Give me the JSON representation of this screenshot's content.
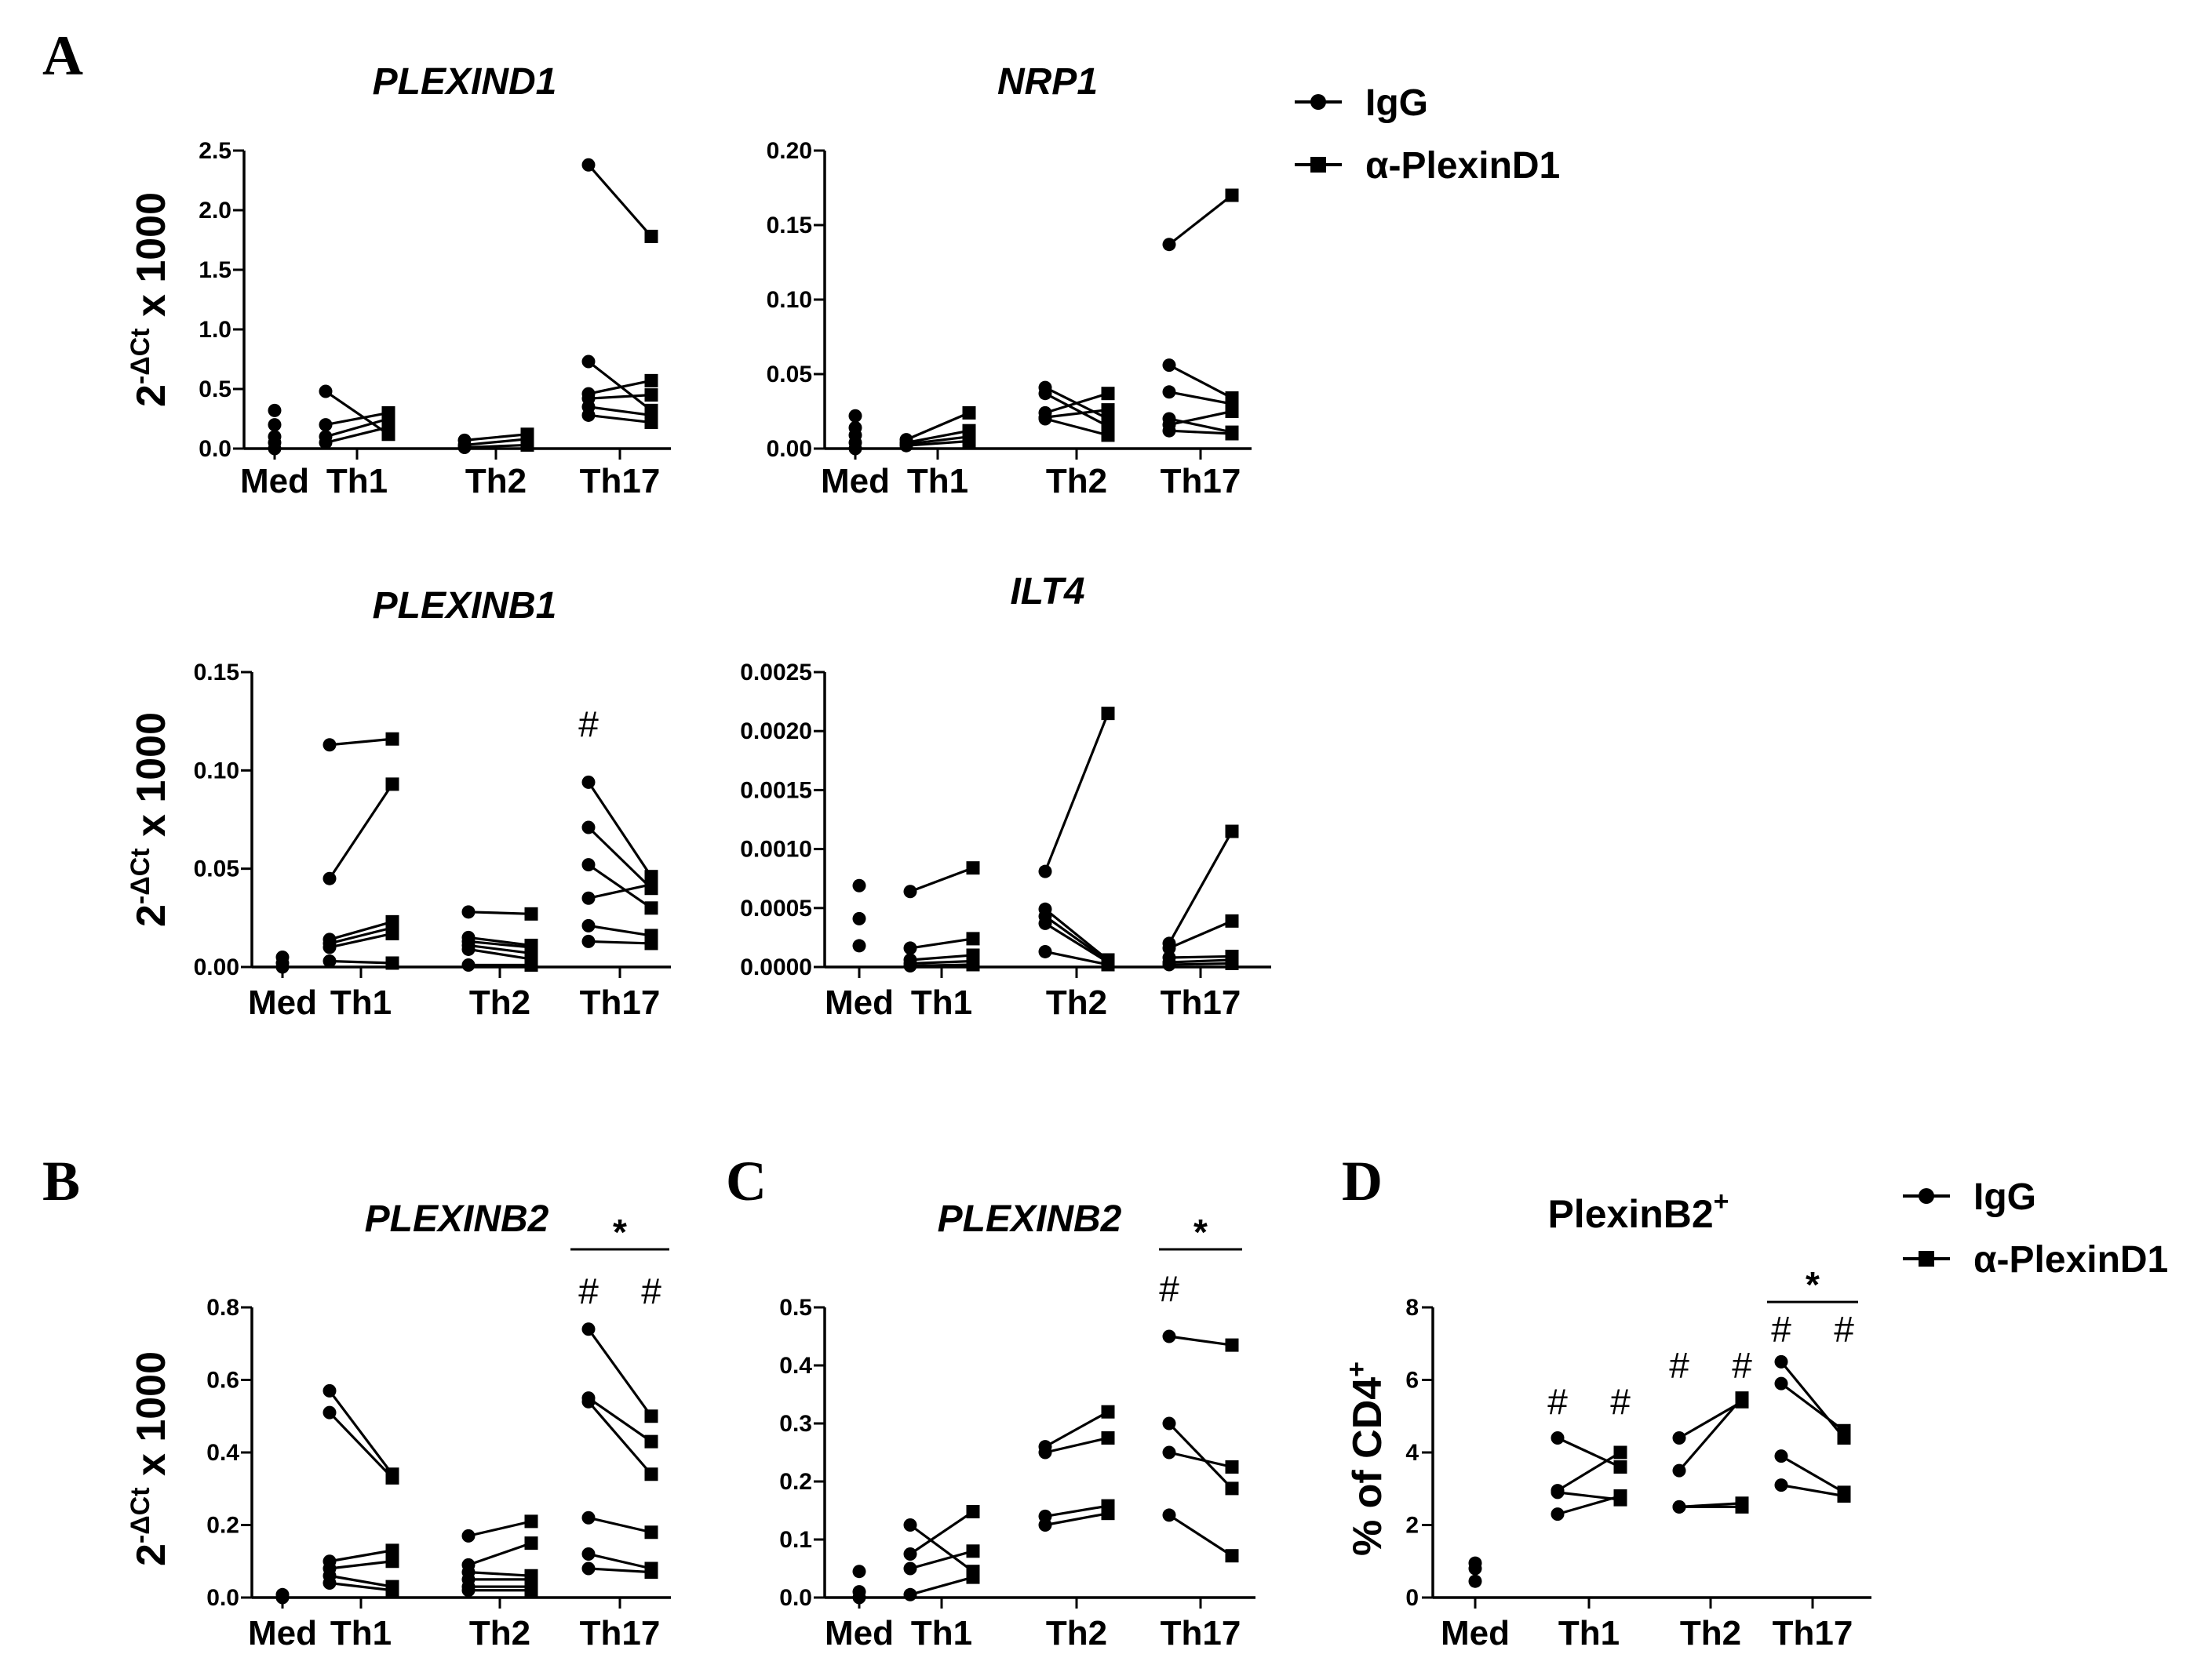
{
  "legend_top": {
    "items": [
      "IgG",
      "α-PlexinD1"
    ]
  },
  "legend_bottom": {
    "items": [
      "IgG",
      "α-PlexinD1"
    ]
  },
  "series_markers": {
    "IgG": "circle",
    "α-PlexinD1": "square"
  },
  "chart_data": [
    {
      "id": "plexind1",
      "type": "scatter",
      "panel_letter": "A",
      "title": "PLEXIND1",
      "ylabel": "2-ΔCt x 1000",
      "ylim": [
        0,
        2.5
      ],
      "yticks": [
        "0.0",
        "0.5",
        "1.0",
        "1.5",
        "2.0",
        "2.5"
      ],
      "categories": [
        "Med",
        "Th1",
        "Th2",
        "Th17"
      ],
      "med_points": [
        0.0,
        0.05,
        0.1,
        0.2,
        0.32
      ],
      "pairs": {
        "Th1": [
          [
            0.48,
            0.12
          ],
          [
            0.2,
            0.3
          ],
          [
            0.1,
            0.25
          ],
          [
            0.05,
            0.18
          ]
        ],
        "Th2": [
          [
            0.07,
            0.12
          ],
          [
            0.03,
            0.08
          ],
          [
            0.01,
            0.03
          ]
        ],
        "Th17": [
          [
            2.38,
            1.78
          ],
          [
            0.73,
            0.32
          ],
          [
            0.46,
            0.57
          ],
          [
            0.42,
            0.45
          ],
          [
            0.35,
            0.28
          ],
          [
            0.28,
            0.22
          ]
        ]
      },
      "annotations": []
    },
    {
      "id": "nrp1",
      "type": "scatter",
      "title": "NRP1",
      "ylabel": "",
      "ylim": [
        0,
        0.2
      ],
      "yticks": [
        "0.00",
        "0.05",
        "0.10",
        "0.15",
        "0.20"
      ],
      "categories": [
        "Med",
        "Th1",
        "Th2",
        "Th17"
      ],
      "med_points": [
        0.0,
        0.004,
        0.009,
        0.014,
        0.022
      ],
      "pairs": {
        "Th1": [
          [
            0.006,
            0.024
          ],
          [
            0.004,
            0.012
          ],
          [
            0.003,
            0.008
          ],
          [
            0.002,
            0.005
          ]
        ],
        "Th2": [
          [
            0.041,
            0.02
          ],
          [
            0.037,
            0.015
          ],
          [
            0.024,
            0.037
          ],
          [
            0.021,
            0.026
          ],
          [
            0.02,
            0.009
          ]
        ],
        "Th17": [
          [
            0.137,
            0.17
          ],
          [
            0.056,
            0.034
          ],
          [
            0.038,
            0.03
          ],
          [
            0.02,
            0.011
          ],
          [
            0.016,
            0.025
          ],
          [
            0.012,
            0.01
          ]
        ]
      },
      "annotations": []
    },
    {
      "id": "plexinb1",
      "type": "scatter",
      "title": "PLEXINB1",
      "ylabel": "2-ΔCt x 1000",
      "ylim": [
        0,
        0.15
      ],
      "yticks": [
        "0.00",
        "0.05",
        "0.10",
        "0.15"
      ],
      "categories": [
        "Med",
        "Th1",
        "Th2",
        "Th17"
      ],
      "med_points": [
        0.0,
        0.002,
        0.005
      ],
      "pairs": {
        "Th1": [
          [
            0.113,
            0.116
          ],
          [
            0.045,
            0.093
          ],
          [
            0.014,
            0.023
          ],
          [
            0.012,
            0.02
          ],
          [
            0.01,
            0.017
          ],
          [
            0.003,
            0.002
          ]
        ],
        "Th2": [
          [
            0.028,
            0.027
          ],
          [
            0.015,
            0.011
          ],
          [
            0.013,
            0.01
          ],
          [
            0.011,
            0.007
          ],
          [
            0.009,
            0.004
          ],
          [
            0.001,
            0.001
          ]
        ],
        "Th17": [
          [
            0.094,
            0.046
          ],
          [
            0.071,
            0.04
          ],
          [
            0.052,
            0.03
          ],
          [
            0.035,
            0.042
          ],
          [
            0.021,
            0.016
          ],
          [
            0.013,
            0.012
          ]
        ]
      },
      "annotations": [
        {
          "text": "#",
          "category": "Th17",
          "side": "igg",
          "value": 0.117
        }
      ]
    },
    {
      "id": "ilt4",
      "type": "scatter",
      "title": "ILT4",
      "ylabel": "",
      "ylim": [
        0,
        0.0025
      ],
      "yticks": [
        "0.0000",
        "0.0005",
        "0.0010",
        "0.0015",
        "0.0020",
        "0.0025"
      ],
      "categories": [
        "Med",
        "Th1",
        "Th2",
        "Th17"
      ],
      "med_points": [
        0.00018,
        0.00041,
        0.00069
      ],
      "pairs": {
        "Th1": [
          [
            0.00064,
            0.00084
          ],
          [
            0.00016,
            0.00024
          ],
          [
            6e-05,
            0.0001
          ],
          [
            3e-05,
            5e-05
          ],
          [
            1e-05,
            2e-05
          ]
        ],
        "Th2": [
          [
            0.00081,
            0.00215
          ],
          [
            0.00049,
            6e-05
          ],
          [
            0.00043,
            5e-05
          ],
          [
            0.00037,
            4e-05
          ],
          [
            0.00013,
            2e-05
          ]
        ],
        "Th17": [
          [
            0.0002,
            0.00115
          ],
          [
            0.00016,
            0.00039
          ],
          [
            8e-05,
            9e-05
          ],
          [
            4e-05,
            6e-05
          ],
          [
            2e-05,
            3e-05
          ]
        ]
      },
      "annotations": []
    },
    {
      "id": "plexinb2-b",
      "type": "scatter",
      "panel_letter": "B",
      "title": "PLEXINB2",
      "ylabel": "2-ΔCt x 1000",
      "ylim": [
        0,
        0.8
      ],
      "yticks": [
        "0.0",
        "0.2",
        "0.4",
        "0.6",
        "0.8"
      ],
      "categories": [
        "Med",
        "Th1",
        "Th2",
        "Th17"
      ],
      "med_points": [
        0.0,
        0.008
      ],
      "pairs": {
        "Th1": [
          [
            0.57,
            0.34
          ],
          [
            0.51,
            0.33
          ],
          [
            0.1,
            0.13
          ],
          [
            0.08,
            0.1
          ],
          [
            0.06,
            0.03
          ],
          [
            0.04,
            0.02
          ]
        ],
        "Th2": [
          [
            0.17,
            0.21
          ],
          [
            0.09,
            0.15
          ],
          [
            0.07,
            0.06
          ],
          [
            0.05,
            0.05
          ],
          [
            0.03,
            0.03
          ],
          [
            0.02,
            0.02
          ]
        ],
        "Th17": [
          [
            0.74,
            0.5
          ],
          [
            0.55,
            0.43
          ],
          [
            0.54,
            0.34
          ],
          [
            0.22,
            0.18
          ],
          [
            0.12,
            0.08
          ],
          [
            0.08,
            0.07
          ]
        ]
      },
      "annotations": [
        {
          "text": "#",
          "category": "Th17",
          "side": "igg",
          "value": 0.81
        },
        {
          "text": "#",
          "category": "Th17",
          "side": "anti",
          "value": 0.81
        },
        {
          "text": "*",
          "category": "Th17",
          "side": "bracket",
          "value": 0.96
        }
      ]
    },
    {
      "id": "plexinb2-c",
      "type": "scatter",
      "panel_letter": "C",
      "title": "PLEXINB2",
      "ylabel": "",
      "ylim": [
        0,
        0.5
      ],
      "yticks": [
        "0.0",
        "0.1",
        "0.2",
        "0.3",
        "0.4",
        "0.5"
      ],
      "categories": [
        "Med",
        "Th1",
        "Th2",
        "Th17"
      ],
      "med_points": [
        0.0,
        0.01,
        0.045
      ],
      "pairs": {
        "Th1": [
          [
            0.125,
            0.045
          ],
          [
            0.075,
            0.148
          ],
          [
            0.05,
            0.08
          ],
          [
            0.005,
            0.035
          ]
        ],
        "Th2": [
          [
            0.26,
            0.32
          ],
          [
            0.25,
            0.275
          ],
          [
            0.14,
            0.158
          ],
          [
            0.125,
            0.145
          ]
        ],
        "Th17": [
          [
            0.45,
            0.435
          ],
          [
            0.3,
            0.188
          ],
          [
            0.25,
            0.225
          ],
          [
            0.142,
            0.072
          ]
        ]
      },
      "annotations": [
        {
          "text": "#",
          "category": "Th17",
          "side": "igg",
          "value": 0.51
        },
        {
          "text": "*",
          "category": "Th17",
          "side": "bracket",
          "value": 0.6
        }
      ]
    },
    {
      "id": "plexinb2-d",
      "type": "scatter",
      "panel_letter": "D",
      "title": "PlexinB2+",
      "ylabel": "% of CD4+",
      "ylim": [
        0,
        8
      ],
      "yticks": [
        "0",
        "2",
        "4",
        "6",
        "8"
      ],
      "categories": [
        "Med",
        "Th1",
        "Th2",
        "Th17"
      ],
      "med_points": [
        0.45,
        0.8,
        0.95
      ],
      "pairs": {
        "Th1": [
          [
            4.4,
            3.6
          ],
          [
            2.95,
            4.0
          ],
          [
            2.9,
            2.7
          ],
          [
            2.3,
            2.8
          ]
        ],
        "Th2": [
          [
            4.4,
            5.4
          ],
          [
            3.5,
            5.5
          ],
          [
            2.5,
            2.5
          ],
          [
            2.5,
            2.6
          ]
        ],
        "Th17": [
          [
            6.5,
            4.4
          ],
          [
            5.9,
            4.6
          ],
          [
            3.9,
            2.9
          ],
          [
            3.1,
            2.8
          ]
        ]
      },
      "annotations": [
        {
          "text": "#",
          "category": "Th1",
          "side": "igg",
          "value": 5.05
        },
        {
          "text": "#",
          "category": "Th1",
          "side": "anti",
          "value": 5.05
        },
        {
          "text": "#",
          "category": "Th2",
          "side": "igg",
          "value": 6.05
        },
        {
          "text": "#",
          "category": "Th2",
          "side": "anti",
          "value": 6.05
        },
        {
          "text": "#",
          "category": "Th17",
          "side": "igg",
          "value": 7.05
        },
        {
          "text": "#",
          "category": "Th17",
          "side": "anti",
          "value": 7.05
        },
        {
          "text": "*",
          "category": "Th17",
          "side": "bracket",
          "value": 8.15
        }
      ]
    }
  ]
}
